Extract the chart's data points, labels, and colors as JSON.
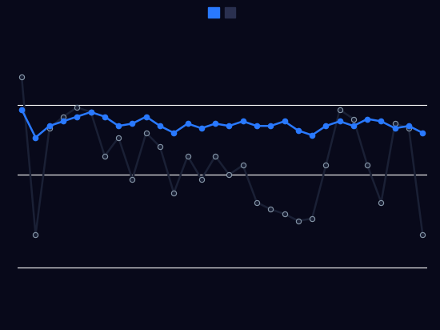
{
  "background_color": "#08091a",
  "line_color_blue": "#2979ff",
  "line_color_dark": "#1a2035",
  "marker_color_blue": "#2979ff",
  "marker_color_dark": "#1a2035",
  "marker_edge_dark": "#8899aa",
  "grid_color": "#ffffff",
  "legend_blue_color": "#2979ff",
  "legend_dark_color": "#2a3050",
  "blue_values": [
    6.9,
    6.3,
    6.55,
    6.65,
    6.75,
    6.85,
    6.75,
    6.55,
    6.6,
    6.75,
    6.55,
    6.4,
    6.6,
    6.5,
    6.6,
    6.55,
    6.65,
    6.55,
    6.55,
    6.65,
    6.45,
    6.35,
    6.55,
    6.65,
    6.55,
    6.7,
    6.65,
    6.5,
    6.55,
    6.4
  ],
  "dark_values": [
    7.6,
    4.2,
    6.5,
    6.75,
    6.95,
    6.85,
    5.9,
    6.3,
    5.4,
    6.4,
    6.1,
    5.1,
    5.9,
    5.4,
    5.9,
    5.5,
    5.7,
    4.9,
    4.75,
    4.65,
    4.5,
    4.55,
    5.7,
    6.9,
    6.7,
    5.7,
    4.9,
    6.6,
    6.5,
    4.2
  ],
  "ylim": [
    2.5,
    8.2
  ],
  "yticks": [
    3.5,
    5.5,
    7.0
  ],
  "line_width": 1.8,
  "marker_size": 4.5,
  "figsize": [
    5.5,
    4.12
  ],
  "dpi": 100
}
